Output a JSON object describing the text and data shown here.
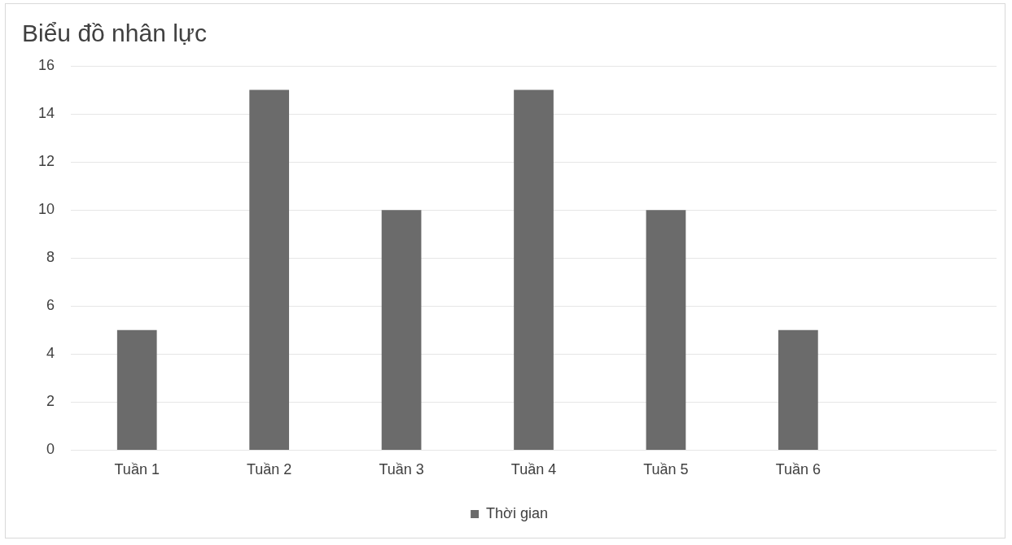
{
  "chart_data": {
    "type": "bar",
    "title": "Biểu đồ nhân lực",
    "categories": [
      "Tuần 1",
      "Tuần 2",
      "Tuần 3",
      "Tuần 4",
      "Tuần 5",
      "Tuần 6",
      null
    ],
    "series": [
      {
        "name": "Thời gian",
        "color": "#6b6b6b",
        "values": [
          5,
          15,
          10,
          15,
          10,
          5,
          null
        ]
      }
    ],
    "ylim": [
      0,
      16
    ],
    "yticks": [
      0,
      2,
      4,
      6,
      8,
      10,
      12,
      14,
      16
    ],
    "grid": "y",
    "legend": "bottom"
  }
}
